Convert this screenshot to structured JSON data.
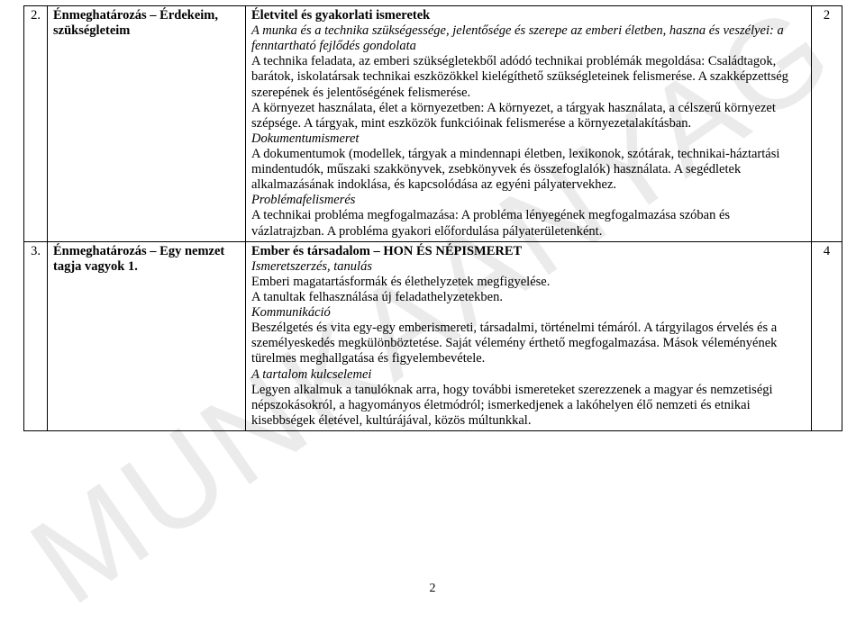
{
  "watermark": "MUNKAANYAG",
  "pageNumber": "2",
  "table": {
    "rows": [
      {
        "num": "2.",
        "topic": "Énmeghatározás – Érdekeim, szükségleteim",
        "hrs": "2",
        "body": {
          "h1": "Életvitel és gyakorlati ismeretek",
          "p1a": "A munka és a technika szükségessége, jelentősége és szerepe az emberi életben, haszna és veszélyei: a fenntartható fejlődés gondolata",
          "p1b": "A technika feladata, az emberi szükségletekből adódó technikai problémák megoldása: Családtagok, barátok, iskolatársak technikai eszközökkel kielégíthető szükségleteinek felismerése. A szakképzettség szerepének és jelentőségének felismerése.",
          "p1c": "A környezet használata, élet a környezetben: A környezet, a tárgyak használata, a célszerű környezet szépsége. A tárgyak, mint eszközök funkcióinak felismerése a környezetalakításban.",
          "h2": "Dokumentumismeret",
          "p2": "A dokumentumok (modellek, tárgyak a mindennapi életben, lexikonok, szótárak, technikai-háztartási mindentudók, műszaki szakkönyvek, zsebkönyvek és összefoglalók) használata. A segédletek alkalmazásának indoklása, és kapcsolódása az egyéni pályatervekhez.",
          "h3": "Problémafelismerés",
          "p3": "A technikai probléma megfogalmazása: A probléma lényegének megfogalmazása szóban és vázlatrajzban. A probléma gyakori előfordulása pályaterületenként."
        }
      },
      {
        "num": "3.",
        "topic": "Énmeghatározás – Egy nemzet tagja vagyok 1.",
        "hrs": "4",
        "body": {
          "h1": "Ember és társadalom – HON ÉS NÉPISMERET",
          "h2": "Ismeretszerzés, tanulás",
          "p2a": "Emberi magatartásformák és élethelyzetek megfigyelése.",
          "p2b": "A tanultak felhasználása új feladathelyzetekben.",
          "h3": "Kommunikáció",
          "p3": "Beszélgetés és vita egy-egy emberismereti, társadalmi, történelmi témáról. A tárgyilagos érvelés és a személyeskedés megkülönböztetése. Saját vélemény érthető megfogalmazása. Mások véleményének türelmes meghallgatása és figyelembevétele.",
          "h4": "A tartalom kulcselemei",
          "p4": "Legyen alkalmuk a tanulóknak arra, hogy további ismereteket szerezzenek a magyar és nemzetiségi népszokásokról, a hagyományos életmódról; ismerkedjenek a lakóhelyen élő nemzeti és etnikai kisebbségek életével, kultúrájával, közös múltunkkal."
        }
      }
    ]
  }
}
